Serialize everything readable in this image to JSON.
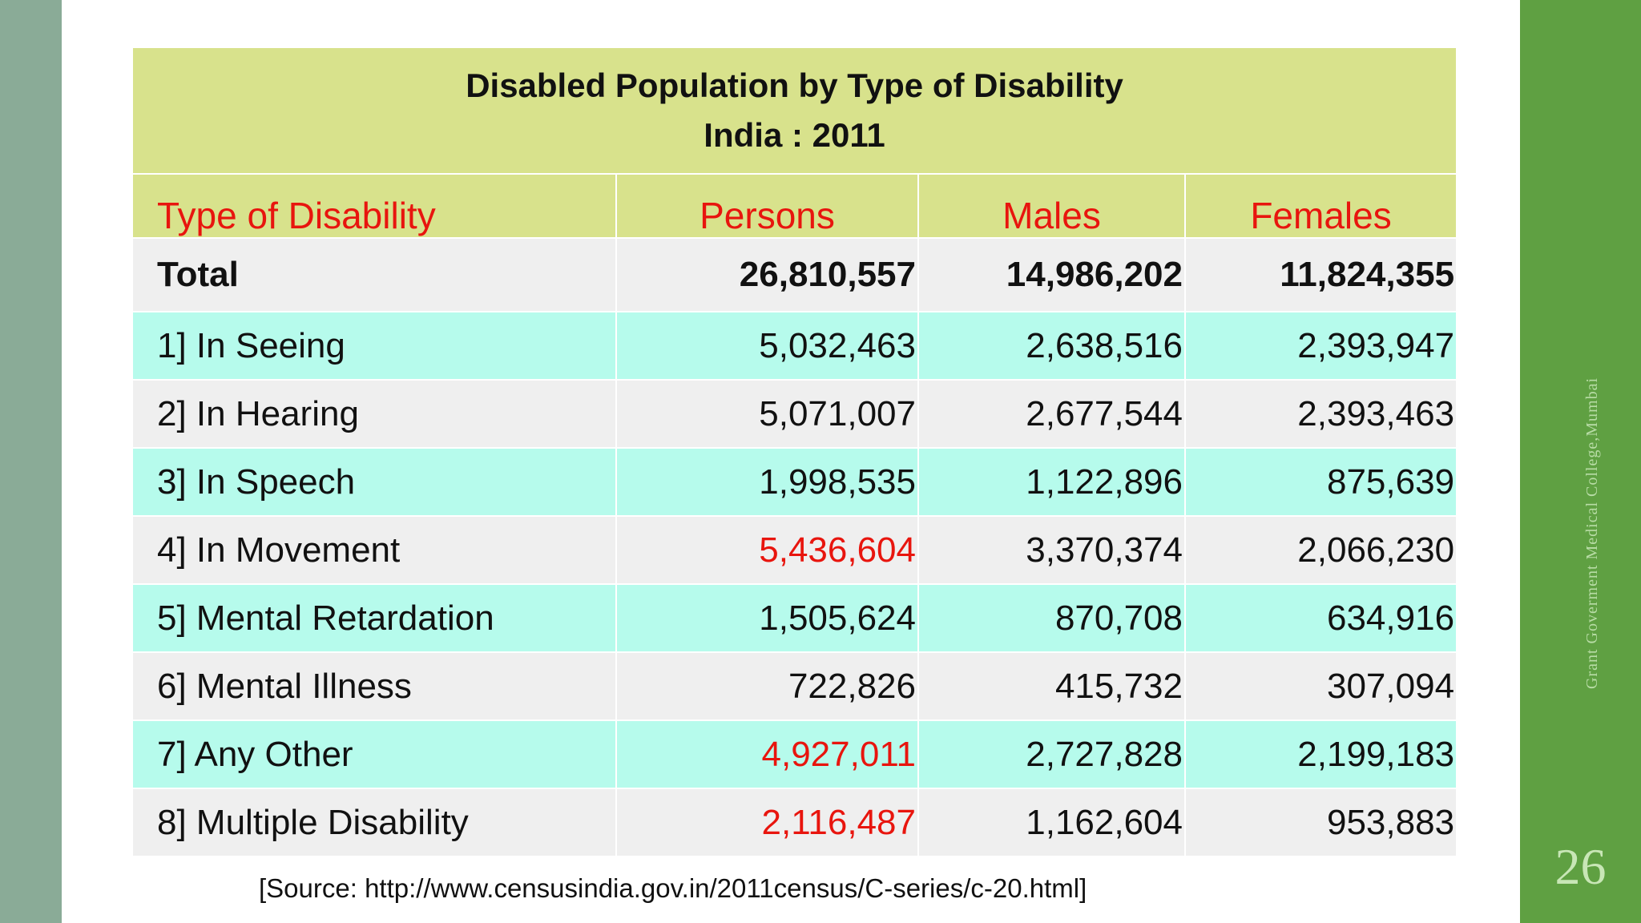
{
  "slide": {
    "title_line1": "Disabled Population by Type of Disability",
    "title_line2": "India : 2011",
    "vertical_credit": "Grant Goverment Medical College,Mumbai",
    "page_number": "26",
    "source": "[Source: http://www.censusindia.gov.in/2011census/C-series/c-20.html]"
  },
  "colors": {
    "header_bg": "#d8e28c",
    "header_text": "#e8150e",
    "row_gray": "#efefef",
    "row_cyan": "#b6fbec",
    "highlight": "#e8150e",
    "left_band": "#8aab97",
    "right_band": "#5fa042"
  },
  "table": {
    "headers": [
      "Type of Disability",
      "Persons",
      "Males",
      "Females"
    ],
    "rows": [
      {
        "label": "Total",
        "persons": "26,810,557",
        "males": "14,986,202",
        "females": "11,824,355"
      },
      {
        "label": "1] In Seeing",
        "persons": "5,032,463",
        "males": "2,638,516",
        "females": "2,393,947"
      },
      {
        "label": "2] In Hearing",
        "persons": "5,071,007",
        "males": "2,677,544",
        "females": "2,393,463"
      },
      {
        "label": "3] In Speech",
        "persons": "1,998,535",
        "males": "1,122,896",
        "females": "875,639"
      },
      {
        "label": "4] In Movement",
        "persons": "5,436,604",
        "males": "3,370,374",
        "females": "2,066,230"
      },
      {
        "label": "5] Mental Retardation",
        "persons": "1,505,624",
        "males": "870,708",
        "females": "634,916"
      },
      {
        "label": "6] Mental Illness",
        "persons": "722,826",
        "males": "415,732",
        "females": "307,094"
      },
      {
        "label": "7] Any Other",
        "persons": "4,927,011",
        "males": "2,727,828",
        "females": "2,199,183"
      },
      {
        "label": "8] Multiple Disability",
        "persons": "2,116,487",
        "males": "1,162,604",
        "females": "953,883"
      }
    ]
  }
}
